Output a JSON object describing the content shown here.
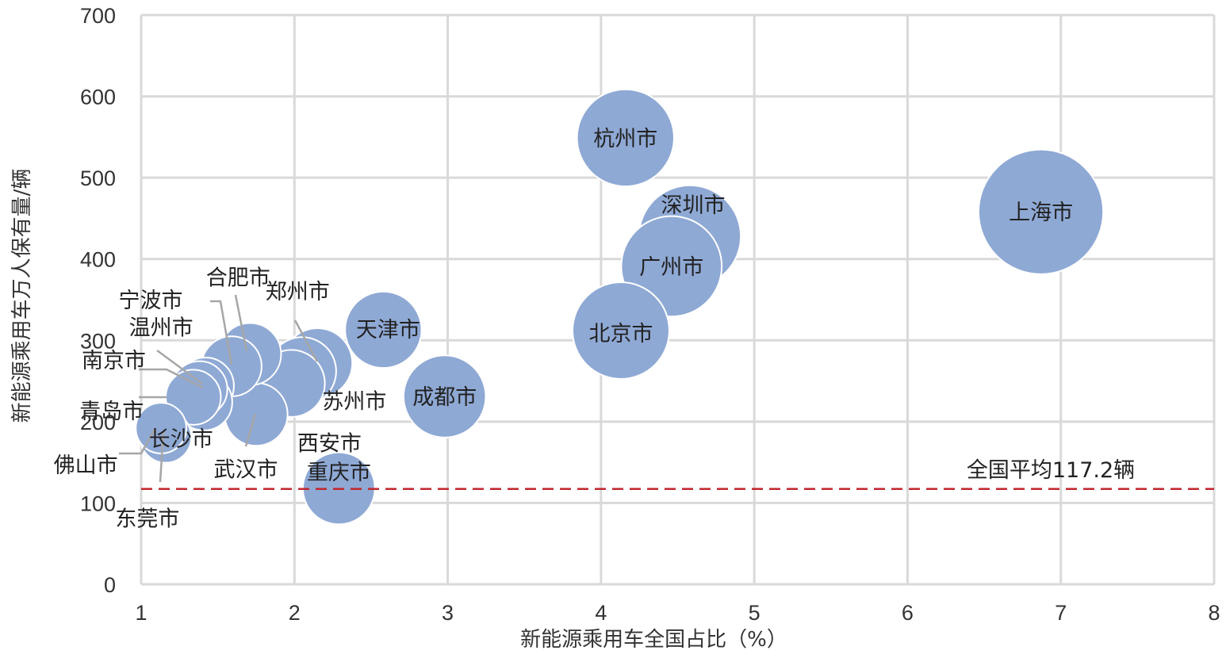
{
  "chart_data": {
    "type": "scatter",
    "subtype": "bubble",
    "xlabel": "新能源乘用车全国占比（%）",
    "ylabel": "新能源乘用车万人保有量/辆",
    "xlim": [
      1,
      8
    ],
    "ylim": [
      0,
      700
    ],
    "xticks": [
      "1",
      "2",
      "3",
      "4",
      "5",
      "6",
      "7",
      "8"
    ],
    "yticks": [
      "0",
      "100",
      "200",
      "300",
      "400",
      "500",
      "600",
      "700"
    ],
    "grid": true,
    "bubble_color": "#8FA9D5",
    "reference_line": {
      "value": 117.2,
      "label": "全国平均117.2辆",
      "color": "#C0272D",
      "style": "dashed"
    },
    "points": [
      {
        "name": "上海市",
        "x": 6.87,
        "y": 458,
        "size": 6.87
      },
      {
        "name": "杭州市",
        "x": 4.16,
        "y": 549,
        "size": 4.16
      },
      {
        "name": "深圳市",
        "x": 4.58,
        "y": 428,
        "size": 4.58
      },
      {
        "name": "广州市",
        "x": 4.46,
        "y": 391,
        "size": 4.46
      },
      {
        "name": "北京市",
        "x": 4.13,
        "y": 312,
        "size": 4.13
      },
      {
        "name": "成都市",
        "x": 2.98,
        "y": 231,
        "size": 2.98
      },
      {
        "name": "天津市",
        "x": 2.58,
        "y": 313,
        "size": 2.58
      },
      {
        "name": "重庆市",
        "x": 2.29,
        "y": 118,
        "size": 2.29
      },
      {
        "name": "郑州市",
        "x": 2.15,
        "y": 272,
        "size": 2.15
      },
      {
        "name": "苏州市",
        "x": 2.05,
        "y": 262,
        "size": 2.05
      },
      {
        "name": "西安市",
        "x": 1.98,
        "y": 247,
        "size": 1.98
      },
      {
        "name": "武汉市",
        "x": 1.75,
        "y": 209,
        "size": 1.75
      },
      {
        "name": "合肥市",
        "x": 1.71,
        "y": 283,
        "size": 1.71
      },
      {
        "name": "宁波市",
        "x": 1.59,
        "y": 268,
        "size": 1.59
      },
      {
        "name": "温州市",
        "x": 1.42,
        "y": 244,
        "size": 1.42
      },
      {
        "name": "南京市",
        "x": 1.38,
        "y": 240,
        "size": 1.38
      },
      {
        "name": "长沙市",
        "x": 1.41,
        "y": 224,
        "size": 1.41
      },
      {
        "name": "青岛市",
        "x": 1.34,
        "y": 230,
        "size": 1.34
      },
      {
        "name": "东莞市",
        "x": 1.16,
        "y": 181,
        "size": 1.16
      },
      {
        "name": "佛山市",
        "x": 1.13,
        "y": 192,
        "size": 1.13
      }
    ]
  }
}
